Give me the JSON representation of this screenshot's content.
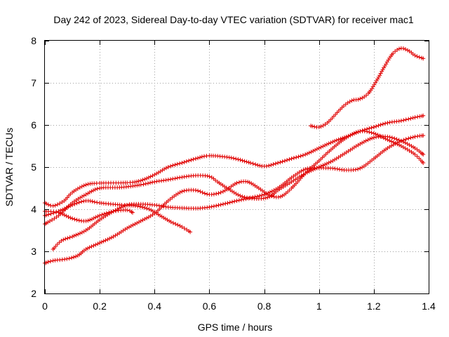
{
  "chart_data": {
    "type": "scatter",
    "title": "Day 242 of 2023, Sidereal Day-to-day VTEC variation (SDTVAR) for receiver mac1",
    "xlabel": "GPS time / hours",
    "ylabel": "SDTVAR / TECUs",
    "xlim": [
      0,
      1.4
    ],
    "ylim": [
      2,
      8
    ],
    "xticks": [
      "0",
      "0.2",
      "0.4",
      "0.6",
      "0.8",
      "1",
      "1.2",
      "1.4"
    ],
    "yticks": [
      "2",
      "3",
      "4",
      "5",
      "6",
      "7",
      "8"
    ],
    "grid": true,
    "marker": "plus",
    "color": "#e00000",
    "series": [
      {
        "name": "s1",
        "points": [
          [
            0,
            4.15
          ],
          [
            0.03,
            4.08
          ],
          [
            0.07,
            4.2
          ],
          [
            0.1,
            4.4
          ],
          [
            0.15,
            4.58
          ],
          [
            0.2,
            4.62
          ],
          [
            0.3,
            4.63
          ],
          [
            0.35,
            4.68
          ],
          [
            0.4,
            4.82
          ],
          [
            0.45,
            5.0
          ],
          [
            0.5,
            5.1
          ],
          [
            0.55,
            5.2
          ],
          [
            0.6,
            5.27
          ],
          [
            0.68,
            5.22
          ],
          [
            0.75,
            5.1
          ],
          [
            0.8,
            5.02
          ],
          [
            0.85,
            5.1
          ],
          [
            0.9,
            5.2
          ],
          [
            0.95,
            5.3
          ],
          [
            1.0,
            5.45
          ],
          [
            1.05,
            5.6
          ],
          [
            1.1,
            5.72
          ],
          [
            1.15,
            5.85
          ],
          [
            1.2,
            5.95
          ],
          [
            1.25,
            6.05
          ],
          [
            1.3,
            6.1
          ],
          [
            1.35,
            6.18
          ],
          [
            1.38,
            6.22
          ]
        ]
      },
      {
        "name": "s2",
        "points": [
          [
            0,
            3.65
          ],
          [
            0.05,
            3.85
          ],
          [
            0.1,
            4.15
          ],
          [
            0.15,
            4.35
          ],
          [
            0.2,
            4.5
          ],
          [
            0.28,
            4.52
          ],
          [
            0.35,
            4.58
          ],
          [
            0.4,
            4.65
          ],
          [
            0.45,
            4.7
          ],
          [
            0.5,
            4.76
          ],
          [
            0.55,
            4.8
          ],
          [
            0.6,
            4.78
          ],
          [
            0.63,
            4.65
          ],
          [
            0.67,
            4.48
          ],
          [
            0.72,
            4.3
          ],
          [
            0.78,
            4.25
          ],
          [
            0.82,
            4.3
          ],
          [
            0.85,
            4.45
          ],
          [
            0.9,
            4.65
          ],
          [
            0.95,
            4.85
          ],
          [
            1.0,
            5.0
          ],
          [
            1.05,
            5.15
          ],
          [
            1.1,
            5.35
          ],
          [
            1.15,
            5.55
          ],
          [
            1.2,
            5.7
          ],
          [
            1.25,
            5.72
          ],
          [
            1.3,
            5.62
          ],
          [
            1.35,
            5.45
          ],
          [
            1.38,
            5.3
          ]
        ]
      },
      {
        "name": "s3",
        "points": [
          [
            0,
            3.85
          ],
          [
            0.05,
            3.95
          ],
          [
            0.1,
            4.1
          ],
          [
            0.15,
            4.2
          ],
          [
            0.2,
            4.15
          ],
          [
            0.28,
            4.1
          ],
          [
            0.33,
            4.08
          ],
          [
            0.38,
            4.0
          ],
          [
            0.42,
            3.85
          ],
          [
            0.46,
            3.7
          ],
          [
            0.5,
            3.58
          ],
          [
            0.53,
            3.46
          ]
        ]
      },
      {
        "name": "s4",
        "points": [
          [
            0,
            3.95
          ],
          [
            0.05,
            3.92
          ],
          [
            0.1,
            3.78
          ],
          [
            0.15,
            3.72
          ],
          [
            0.2,
            3.85
          ],
          [
            0.25,
            3.95
          ],
          [
            0.3,
            3.98
          ],
          [
            0.32,
            3.92
          ]
        ]
      },
      {
        "name": "s5",
        "points": [
          [
            0.03,
            3.05
          ],
          [
            0.06,
            3.25
          ],
          [
            0.1,
            3.35
          ],
          [
            0.15,
            3.5
          ],
          [
            0.2,
            3.75
          ],
          [
            0.25,
            3.95
          ],
          [
            0.3,
            4.1
          ],
          [
            0.35,
            4.12
          ],
          [
            0.4,
            4.1
          ],
          [
            0.45,
            4.05
          ],
          [
            0.5,
            4.03
          ],
          [
            0.55,
            4.02
          ],
          [
            0.6,
            4.05
          ],
          [
            0.65,
            4.12
          ],
          [
            0.7,
            4.2
          ],
          [
            0.75,
            4.27
          ],
          [
            0.8,
            4.35
          ],
          [
            0.85,
            4.5
          ],
          [
            0.9,
            4.75
          ],
          [
            0.95,
            4.95
          ],
          [
            1.0,
            4.98
          ],
          [
            1.05,
            4.97
          ],
          [
            1.1,
            4.93
          ],
          [
            1.15,
            4.97
          ],
          [
            1.2,
            5.2
          ],
          [
            1.25,
            5.45
          ],
          [
            1.3,
            5.62
          ],
          [
            1.35,
            5.72
          ],
          [
            1.38,
            5.75
          ]
        ]
      },
      {
        "name": "s6",
        "points": [
          [
            0,
            2.72
          ],
          [
            0.03,
            2.78
          ],
          [
            0.08,
            2.82
          ],
          [
            0.12,
            2.9
          ],
          [
            0.15,
            3.05
          ],
          [
            0.2,
            3.2
          ],
          [
            0.25,
            3.35
          ],
          [
            0.3,
            3.55
          ],
          [
            0.35,
            3.72
          ],
          [
            0.4,
            3.9
          ],
          [
            0.45,
            4.2
          ],
          [
            0.5,
            4.42
          ],
          [
            0.55,
            4.45
          ],
          [
            0.6,
            4.35
          ],
          [
            0.65,
            4.42
          ],
          [
            0.7,
            4.62
          ],
          [
            0.74,
            4.65
          ],
          [
            0.78,
            4.5
          ],
          [
            0.82,
            4.33
          ],
          [
            0.86,
            4.3
          ],
          [
            0.9,
            4.5
          ],
          [
            0.95,
            4.85
          ],
          [
            1.0,
            5.15
          ],
          [
            1.05,
            5.45
          ],
          [
            1.1,
            5.7
          ],
          [
            1.15,
            5.85
          ],
          [
            1.2,
            5.8
          ],
          [
            1.25,
            5.65
          ],
          [
            1.3,
            5.5
          ],
          [
            1.35,
            5.3
          ],
          [
            1.38,
            5.1
          ]
        ]
      },
      {
        "name": "s7",
        "points": [
          [
            0.97,
            5.98
          ],
          [
            1.0,
            5.95
          ],
          [
            1.03,
            6.05
          ],
          [
            1.06,
            6.25
          ],
          [
            1.09,
            6.45
          ],
          [
            1.12,
            6.58
          ],
          [
            1.15,
            6.62
          ],
          [
            1.18,
            6.75
          ],
          [
            1.21,
            7.05
          ],
          [
            1.24,
            7.4
          ],
          [
            1.27,
            7.7
          ],
          [
            1.3,
            7.82
          ],
          [
            1.33,
            7.75
          ],
          [
            1.35,
            7.65
          ],
          [
            1.38,
            7.58
          ]
        ]
      }
    ]
  }
}
